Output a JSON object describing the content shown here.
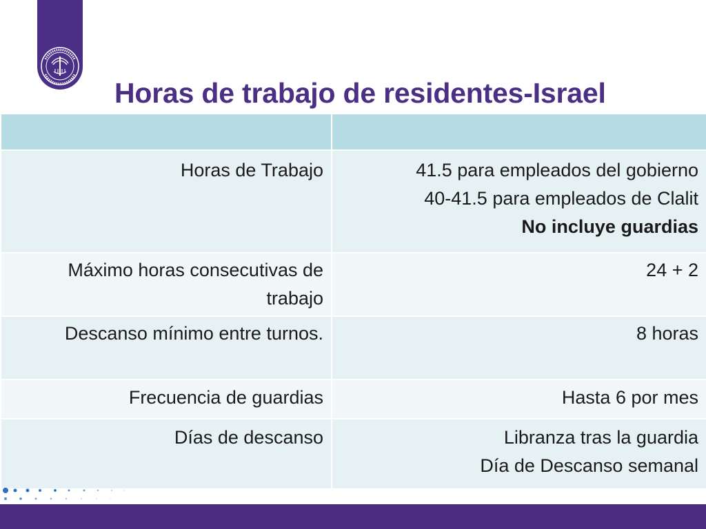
{
  "logo": {
    "name": "israeli-medical-association-logo",
    "brand_color": "#4b2f86",
    "emblem_text": "ISRAELI MEDICAL ASSOCIATION · ההסתדרות הרפואית"
  },
  "slide": {
    "title": "Horas de trabajo de residentes-Israel"
  },
  "table": {
    "header": [
      "",
      ""
    ],
    "rows": [
      {
        "label": "Horas de Trabajo",
        "values": [
          "41.5 para empleados del gobierno",
          "40-41.5 para empleados de Clalit",
          "No incluye guardias"
        ]
      },
      {
        "label": "Máximo horas consecutivas de trabajo",
        "values": [
          "24 + 2"
        ]
      },
      {
        "label": "Descanso mínimo entre turnos.",
        "values": [
          "8 horas"
        ]
      },
      {
        "label": "Frecuencia de guardias",
        "values": [
          "Hasta 6 por mes"
        ]
      },
      {
        "label": "Días de descanso",
        "values": [
          "Libranza tras la guardia",
          "Día de Descanso semanal"
        ]
      }
    ]
  },
  "colors": {
    "title": "#4a2f85",
    "header_fill": "#b5dde3",
    "row_fill_a": "#e6f1f4",
    "row_fill_b": "#f1f7f9",
    "footer_bar": "#4a2d80",
    "dots": "#2e6fb7"
  }
}
